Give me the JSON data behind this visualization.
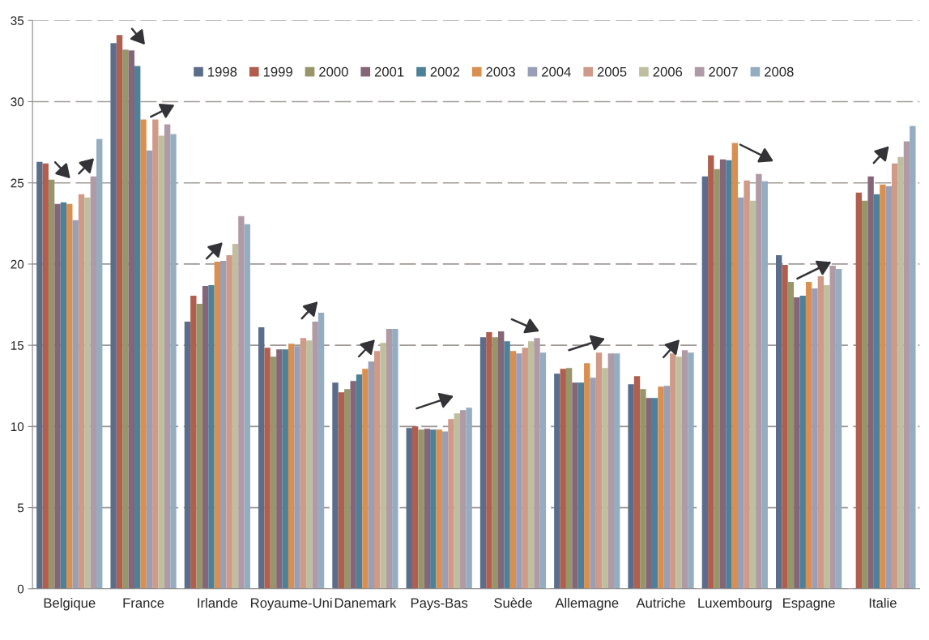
{
  "chart_data": {
    "type": "bar",
    "categories": [
      "Belgique",
      "France",
      "Irlande",
      "Royaume-Uni",
      "Danemark",
      "Pays-Bas",
      "Suède",
      "Allemagne",
      "Autriche",
      "Luxembourg",
      "Espagne",
      "Italie"
    ],
    "series": [
      {
        "name": "1998",
        "color": "#5a6e8c",
        "values": [
          26.3,
          33.6,
          16.45,
          16.1,
          12.7,
          9.9,
          15.5,
          13.25,
          12.6,
          25.4,
          20.55,
          null
        ]
      },
      {
        "name": "1999",
        "color": "#b05f4e",
        "values": [
          26.2,
          34.1,
          18.05,
          14.85,
          12.1,
          10.0,
          15.8,
          13.55,
          13.1,
          26.7,
          19.95,
          24.4
        ]
      },
      {
        "name": "2000",
        "color": "#97956a",
        "values": [
          25.2,
          33.2,
          17.55,
          14.3,
          12.3,
          9.8,
          15.5,
          13.6,
          12.3,
          25.85,
          18.9,
          23.9
        ]
      },
      {
        "name": "2001",
        "color": "#856678",
        "values": [
          23.7,
          33.15,
          18.65,
          14.75,
          12.8,
          9.85,
          15.85,
          12.7,
          11.75,
          26.45,
          17.95,
          25.4
        ]
      },
      {
        "name": "2002",
        "color": "#4c8199",
        "values": [
          23.8,
          32.2,
          18.7,
          14.75,
          13.2,
          9.8,
          15.25,
          12.7,
          11.75,
          26.4,
          18.05,
          24.3
        ]
      },
      {
        "name": "2003",
        "color": "#d98f4f",
        "values": [
          23.7,
          28.9,
          20.15,
          15.1,
          13.55,
          9.8,
          14.65,
          13.9,
          12.45,
          27.45,
          18.9,
          24.9
        ]
      },
      {
        "name": "2004",
        "color": "#9a9fb5",
        "values": [
          22.7,
          27.0,
          20.2,
          14.95,
          14.0,
          9.7,
          14.5,
          13.0,
          12.5,
          24.1,
          18.5,
          24.8
        ]
      },
      {
        "name": "2005",
        "color": "#cf9a87",
        "values": [
          24.3,
          28.9,
          20.55,
          15.45,
          14.65,
          10.45,
          14.85,
          14.55,
          14.5,
          25.15,
          19.25,
          26.2
        ]
      },
      {
        "name": "2006",
        "color": "#bfbf9f",
        "values": [
          24.1,
          27.9,
          21.25,
          15.3,
          15.15,
          10.8,
          15.25,
          13.6,
          14.3,
          23.9,
          18.7,
          26.6
        ]
      },
      {
        "name": "2007",
        "color": "#b09aa5",
        "values": [
          25.4,
          28.6,
          22.95,
          16.45,
          16.0,
          11.0,
          15.45,
          14.5,
          14.7,
          25.55,
          19.9,
          27.55
        ]
      },
      {
        "name": "2008",
        "color": "#94adc0",
        "values": [
          27.7,
          28.0,
          22.45,
          17.0,
          16.0,
          11.15,
          14.55,
          14.5,
          14.55,
          25.1,
          19.7,
          28.5
        ]
      }
    ],
    "ylim": [
      0,
      35
    ],
    "yticks": [
      0,
      5,
      10,
      15,
      20,
      25,
      30,
      35
    ],
    "grid": "y",
    "legend": "top"
  }
}
